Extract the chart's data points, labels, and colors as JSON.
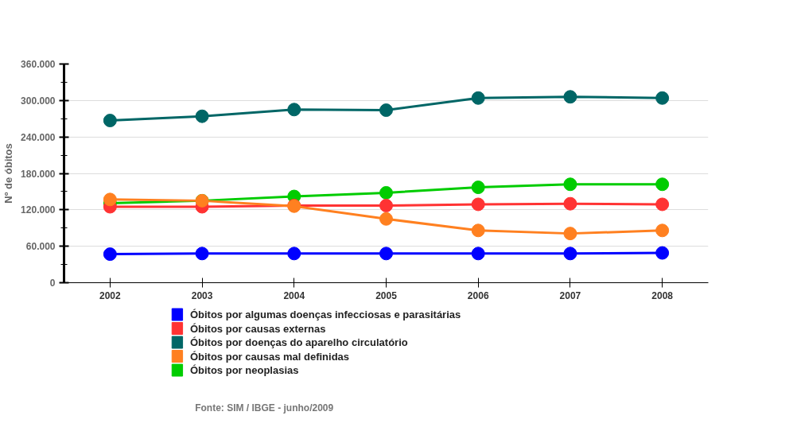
{
  "chart_data": {
    "type": "line",
    "ylabel": "Nº de óbitos",
    "categories": [
      "2002",
      "2003",
      "2004",
      "2005",
      "2006",
      "2007",
      "2008"
    ],
    "series": [
      {
        "name": "Óbitos por algumas doenças infecciosas e parasitárias",
        "color": "#0000ff",
        "values": [
          47000,
          48000,
          48000,
          48000,
          48000,
          48000,
          49000
        ]
      },
      {
        "name": "Óbitos por causas externas",
        "color": "#ff3333",
        "values": [
          125000,
          125000,
          127000,
          127000,
          129000,
          130000,
          129000
        ]
      },
      {
        "name": "Óbitos por doenças do aparelho circulatório",
        "color": "#006666",
        "values": [
          267000,
          274000,
          285000,
          284000,
          304000,
          306000,
          304000
        ]
      },
      {
        "name": "Óbitos por causas mal definidas",
        "color": "#ff8020",
        "values": [
          137000,
          135000,
          126000,
          105000,
          86000,
          81000,
          86000
        ]
      },
      {
        "name": "Óbitos por neoplasias",
        "color": "#00cc00",
        "values": [
          131000,
          135000,
          142000,
          148000,
          157000,
          162000,
          162000
        ]
      }
    ],
    "ylim": [
      0,
      360000
    ],
    "yticks": [
      {
        "value": 0,
        "label": "0"
      },
      {
        "value": 30000,
        "label": null
      },
      {
        "value": 60000,
        "label": "60.000"
      },
      {
        "value": 90000,
        "label": null
      },
      {
        "value": 120000,
        "label": "120.000"
      },
      {
        "value": 150000,
        "label": null
      },
      {
        "value": 180000,
        "label": "180.000"
      },
      {
        "value": 210000,
        "label": null
      },
      {
        "value": 240000,
        "label": "240.000"
      },
      {
        "value": 270000,
        "label": null
      },
      {
        "value": 300000,
        "label": "300.000"
      },
      {
        "value": 330000,
        "label": null
      },
      {
        "value": 360000,
        "label": "360.000"
      }
    ],
    "grid": "y",
    "legend": "bottom",
    "marker": "circle",
    "line_style": "solid",
    "annotations": [
      "Fonte: SIM / IBGE - junho/2009"
    ]
  }
}
